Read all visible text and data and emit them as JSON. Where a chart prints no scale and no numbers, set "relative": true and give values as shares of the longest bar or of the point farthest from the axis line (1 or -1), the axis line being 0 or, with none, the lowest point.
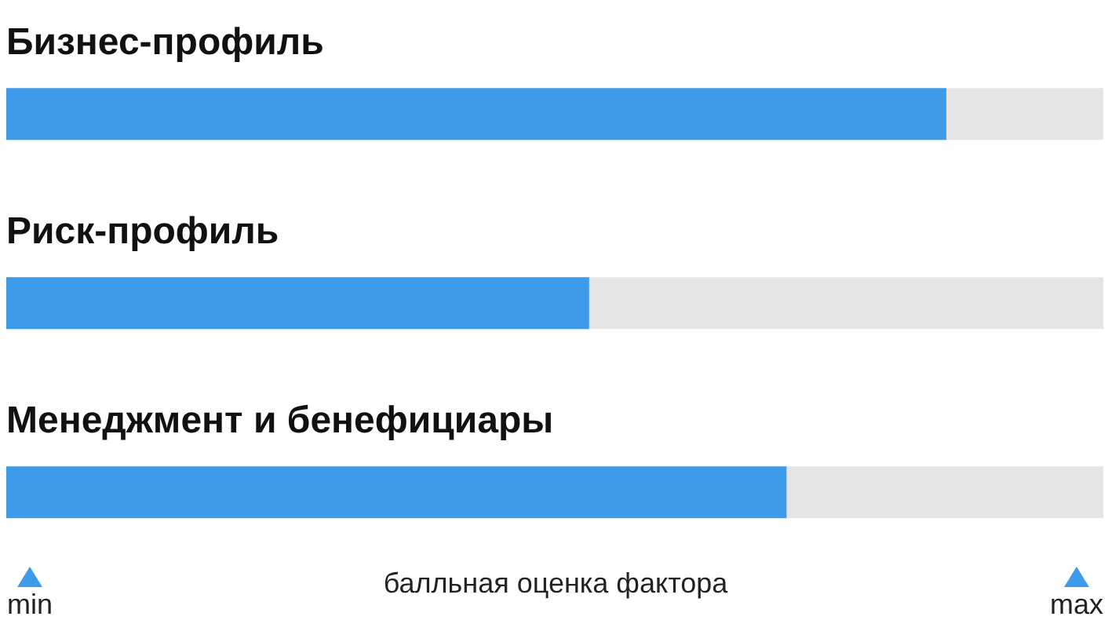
{
  "chart_data": {
    "type": "bar",
    "orientation": "horizontal",
    "relative": true,
    "categories": [
      "Бизнес-профиль",
      "Риск-профиль",
      "Менеджмент и бенефициары"
    ],
    "values": [
      1,
      0.62,
      0.83
    ],
    "color": "#3d9be9",
    "xlabel": "балльная оценка фактора",
    "annotations": [
      "min",
      "max"
    ]
  }
}
